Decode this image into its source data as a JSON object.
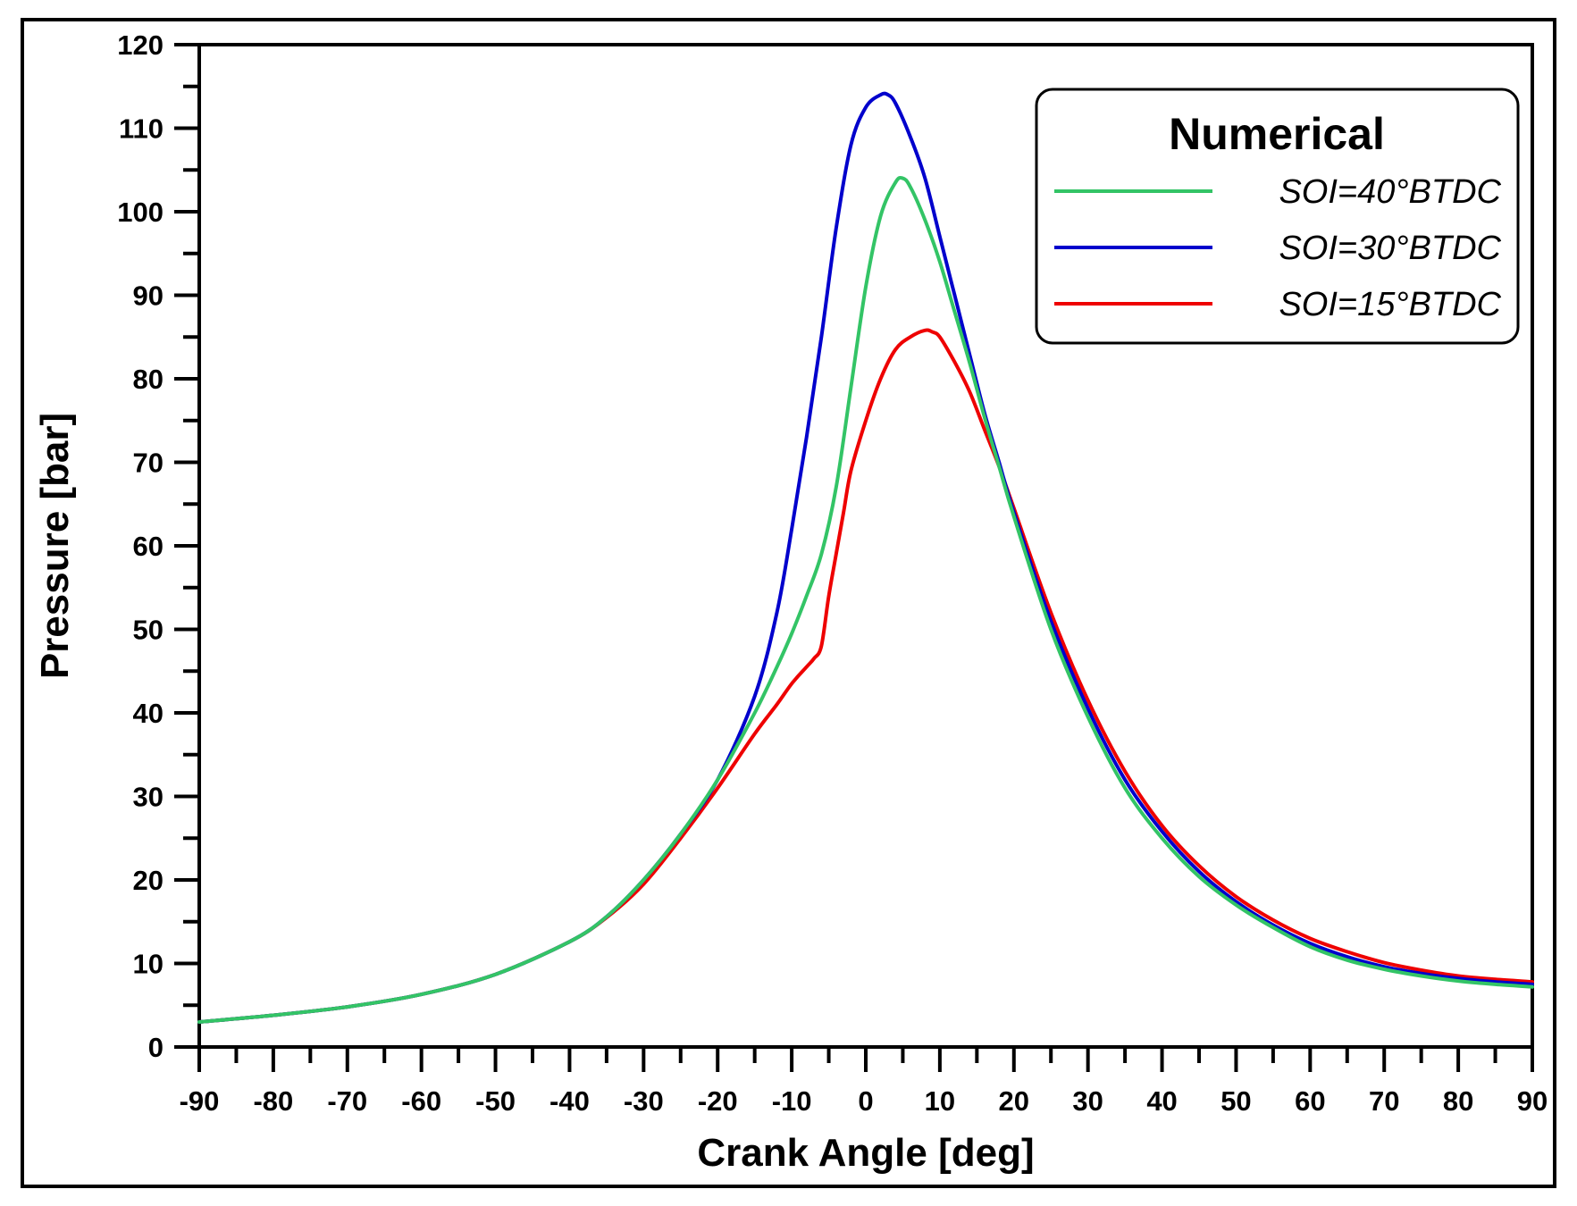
{
  "chart_data": {
    "type": "line",
    "title": "",
    "xlabel": "Crank Angle [deg]",
    "ylabel": "Pressure [bar]",
    "xlim": [
      -90,
      90
    ],
    "ylim": [
      0,
      120
    ],
    "xticks": [
      -90,
      -80,
      -70,
      -60,
      -50,
      -40,
      -30,
      -20,
      -10,
      0,
      10,
      20,
      30,
      40,
      50,
      60,
      70,
      80,
      90
    ],
    "yticks": [
      0,
      10,
      20,
      30,
      40,
      50,
      60,
      70,
      80,
      90,
      100,
      110,
      120
    ],
    "xtick_labels": [
      "-90",
      "-80",
      "-70",
      "-60",
      "-50",
      "-40",
      "-30",
      "-20",
      "-10",
      "0",
      "10",
      "20",
      "30",
      "40",
      "50",
      "60",
      "70",
      "80",
      "90"
    ],
    "ytick_labels": [
      "0",
      "10",
      "20",
      "30",
      "40",
      "50",
      "60",
      "70",
      "80",
      "90",
      "100",
      "110",
      "120"
    ],
    "legend": {
      "title": "Numerical",
      "position": "top-right"
    },
    "series": [
      {
        "name": "SOI=30°BTDC",
        "color": "#0000cc",
        "x": [
          -90,
          -80,
          -70,
          -60,
          -50,
          -40,
          -35,
          -30,
          -25,
          -20,
          -15,
          -12,
          -10,
          -8,
          -6,
          -4,
          -2,
          0,
          2,
          3,
          4,
          6,
          8,
          10,
          12,
          14,
          16,
          18,
          20,
          25,
          30,
          35,
          40,
          45,
          50,
          55,
          60,
          65,
          70,
          75,
          80,
          85,
          90
        ],
        "y": [
          3.0,
          3.8,
          4.8,
          6.3,
          8.7,
          12.6,
          15.6,
          20.0,
          25.5,
          32.0,
          42.0,
          52.0,
          62.0,
          73.0,
          85.0,
          98.0,
          108.0,
          112.5,
          114.0,
          114.0,
          113.0,
          109.0,
          104.0,
          97.0,
          90.0,
          83.0,
          76.0,
          70.0,
          64.0,
          51.0,
          40.5,
          32.0,
          25.8,
          21.0,
          17.4,
          14.6,
          12.4,
          10.8,
          9.6,
          8.8,
          8.2,
          7.8,
          7.5
        ]
      },
      {
        "name": "SOI=40°BTDC",
        "color": "#33c466",
        "x": [
          -90,
          -80,
          -70,
          -60,
          -50,
          -40,
          -35,
          -30,
          -25,
          -20,
          -15,
          -12,
          -10,
          -8,
          -6,
          -4,
          -2,
          0,
          2,
          4,
          5,
          6,
          8,
          10,
          12,
          14,
          16,
          18,
          20,
          25,
          30,
          35,
          40,
          45,
          50,
          55,
          60,
          65,
          70,
          75,
          80,
          85,
          90
        ],
        "y": [
          3.0,
          3.8,
          4.8,
          6.3,
          8.7,
          12.6,
          15.6,
          20.0,
          25.5,
          32.0,
          40.0,
          45.5,
          49.5,
          54.0,
          59.0,
          67.0,
          79.0,
          91.0,
          99.5,
          103.5,
          104.0,
          103.0,
          99.0,
          94.0,
          88.0,
          82.0,
          75.5,
          69.5,
          63.5,
          50.0,
          39.5,
          31.0,
          25.0,
          20.4,
          17.0,
          14.3,
          12.0,
          10.4,
          9.3,
          8.5,
          7.9,
          7.5,
          7.2
        ]
      },
      {
        "name": "SOI=15°BTDC",
        "color": "#ee0000",
        "x": [
          -90,
          -80,
          -70,
          -60,
          -50,
          -40,
          -35,
          -30,
          -25,
          -20,
          -15,
          -12,
          -10,
          -8,
          -7,
          -6,
          -5,
          -4,
          -3,
          -2,
          0,
          2,
          4,
          6,
          8,
          9,
          10,
          12,
          14,
          16,
          18,
          20,
          25,
          30,
          35,
          40,
          45,
          50,
          55,
          60,
          65,
          70,
          75,
          80,
          85,
          90
        ],
        "y": [
          3.0,
          3.8,
          4.8,
          6.3,
          8.7,
          12.6,
          15.5,
          19.5,
          25.0,
          31.0,
          37.5,
          41.0,
          43.5,
          45.5,
          46.5,
          48.0,
          54.0,
          59.0,
          64.0,
          69.0,
          75.0,
          80.0,
          83.5,
          85.0,
          85.8,
          85.6,
          85.0,
          82.0,
          78.5,
          74.0,
          69.5,
          64.5,
          52.0,
          41.5,
          33.0,
          26.5,
          21.7,
          18.0,
          15.2,
          13.0,
          11.4,
          10.1,
          9.2,
          8.5,
          8.1,
          7.8
        ]
      }
    ]
  }
}
